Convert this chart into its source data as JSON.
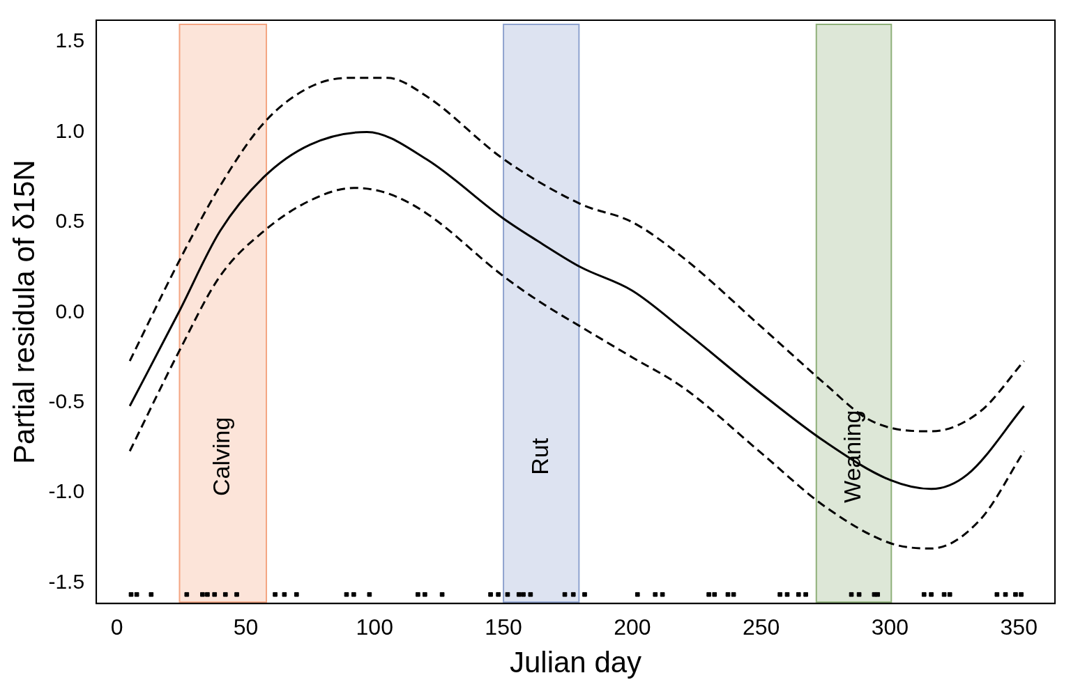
{
  "chart_data": {
    "type": "line",
    "xlabel": "Julian day",
    "ylabel": "Partial residula of δ15N",
    "xlim": [
      -8,
      364
    ],
    "ylim": [
      -1.615,
      1.62
    ],
    "xticks": [
      0,
      50,
      100,
      150,
      200,
      250,
      300,
      350
    ],
    "yticks": [
      -1.5,
      {
        "value": -1,
        "label": "-1.0"
      },
      -0.5,
      {
        "value": 0,
        "label": "0.0"
      },
      0.5,
      {
        "value": 1,
        "label": "1.0"
      },
      1.5
    ],
    "grid": false,
    "legend": false,
    "series": [
      {
        "type": "line",
        "marker": "none",
        "color": "#000000",
        "line_style": "solid",
        "x": [
          5,
          24,
          40,
          57,
          75,
          97,
          120,
          150,
          165,
          180,
          200,
          220,
          250,
          275,
          300,
          316,
          330,
          352
        ],
        "values": [
          -0.52,
          0.0,
          0.45,
          0.75,
          0.93,
          1.0,
          0.85,
          0.52,
          0.38,
          0.25,
          0.12,
          -0.1,
          -0.45,
          -0.72,
          -0.93,
          -0.98,
          -0.9,
          -0.52
        ]
      },
      {
        "type": "line",
        "marker": "none",
        "color": "#000000",
        "line_style": "dashed",
        "x": [
          5,
          24,
          40,
          57,
          75,
          90,
          105,
          120,
          150,
          180,
          200,
          220,
          250,
          275,
          290,
          300,
          316,
          335,
          352
        ],
        "values": [
          -0.27,
          0.28,
          0.7,
          1.05,
          1.25,
          1.3,
          1.3,
          1.2,
          0.85,
          0.6,
          0.5,
          0.3,
          -0.08,
          -0.4,
          -0.58,
          -0.64,
          -0.66,
          -0.55,
          -0.27
        ]
      },
      {
        "type": "line",
        "marker": "none",
        "color": "#000000",
        "line_style": "dashed",
        "x": [
          5,
          24,
          40,
          57,
          75,
          92,
          105,
          120,
          150,
          165,
          180,
          200,
          220,
          250,
          275,
          300,
          316,
          335,
          352
        ],
        "values": [
          -0.77,
          -0.22,
          0.2,
          0.45,
          0.62,
          0.69,
          0.66,
          0.55,
          0.2,
          0.05,
          -0.08,
          -0.25,
          -0.42,
          -0.78,
          -1.08,
          -1.28,
          -1.31,
          -1.15,
          -0.77
        ]
      },
      {
        "type": "scatter",
        "marker": "square",
        "color": "#000000",
        "x": [
          5.5,
          7.7,
          13.3,
          27.1,
          33.2,
          35.1,
          37.9,
          42.1,
          46.5,
          61.4,
          65,
          69.7,
          89.1,
          91.9,
          98,
          116.8,
          119.5,
          126.2,
          145,
          148,
          151.6,
          156,
          157.7,
          160.5,
          173.8,
          177.1,
          181.5,
          202,
          208.9,
          211.7,
          229.7,
          231.9,
          237.1,
          239.3,
          257.3,
          260.1,
          264.5,
          267.3,
          285,
          288,
          293.9,
          295.2,
          313.2,
          316,
          321,
          323.2,
          341.5,
          344.8,
          348.7,
          350.9
        ],
        "values": [
          -1.565,
          -1.565,
          -1.565,
          -1.565,
          -1.565,
          -1.565,
          -1.565,
          -1.565,
          -1.565,
          -1.565,
          -1.565,
          -1.565,
          -1.565,
          -1.565,
          -1.565,
          -1.565,
          -1.565,
          -1.565,
          -1.565,
          -1.565,
          -1.565,
          -1.565,
          -1.565,
          -1.565,
          -1.565,
          -1.565,
          -1.565,
          -1.565,
          -1.565,
          -1.565,
          -1.565,
          -1.565,
          -1.565,
          -1.565,
          -1.565,
          -1.565,
          -1.565,
          -1.565,
          -1.565,
          -1.565,
          -1.565,
          -1.565,
          -1.565,
          -1.565,
          -1.565,
          -1.565,
          -1.565,
          -1.565,
          -1.565,
          -1.565
        ]
      }
    ],
    "bands": [
      {
        "axis": "x",
        "from": 24.3,
        "to": 58,
        "label": "Calving",
        "color": "#f4a582"
      },
      {
        "axis": "x",
        "from": 150,
        "to": 179.3,
        "label": "Rut",
        "color": "#8fa3cf"
      },
      {
        "axis": "x",
        "from": 271.4,
        "to": 300.5,
        "label": "Weaning",
        "color": "#8fb07a"
      }
    ]
  }
}
